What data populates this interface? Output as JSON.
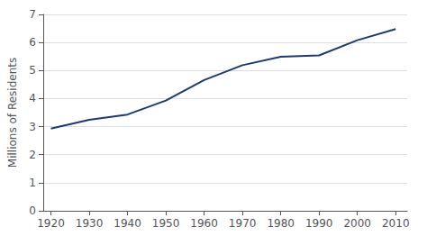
{
  "chart_data": {
    "type": "line",
    "x": [
      1920,
      1930,
      1940,
      1950,
      1960,
      1970,
      1980,
      1990,
      2000,
      2010
    ],
    "values": [
      2.93,
      3.24,
      3.43,
      3.93,
      4.66,
      5.19,
      5.49,
      5.54,
      6.08,
      6.48
    ],
    "color": "#1e3a70",
    "ylabel": "Millions of Residents",
    "xlim": [
      1918,
      2013
    ],
    "xticks": [
      1920,
      1930,
      1940,
      1950,
      1960,
      1970,
      1980,
      1990,
      2000,
      2010
    ],
    "ylim": [
      0,
      7
    ],
    "yticks": [
      0,
      1,
      2,
      3,
      4,
      5,
      6,
      7
    ],
    "grid": true
  }
}
